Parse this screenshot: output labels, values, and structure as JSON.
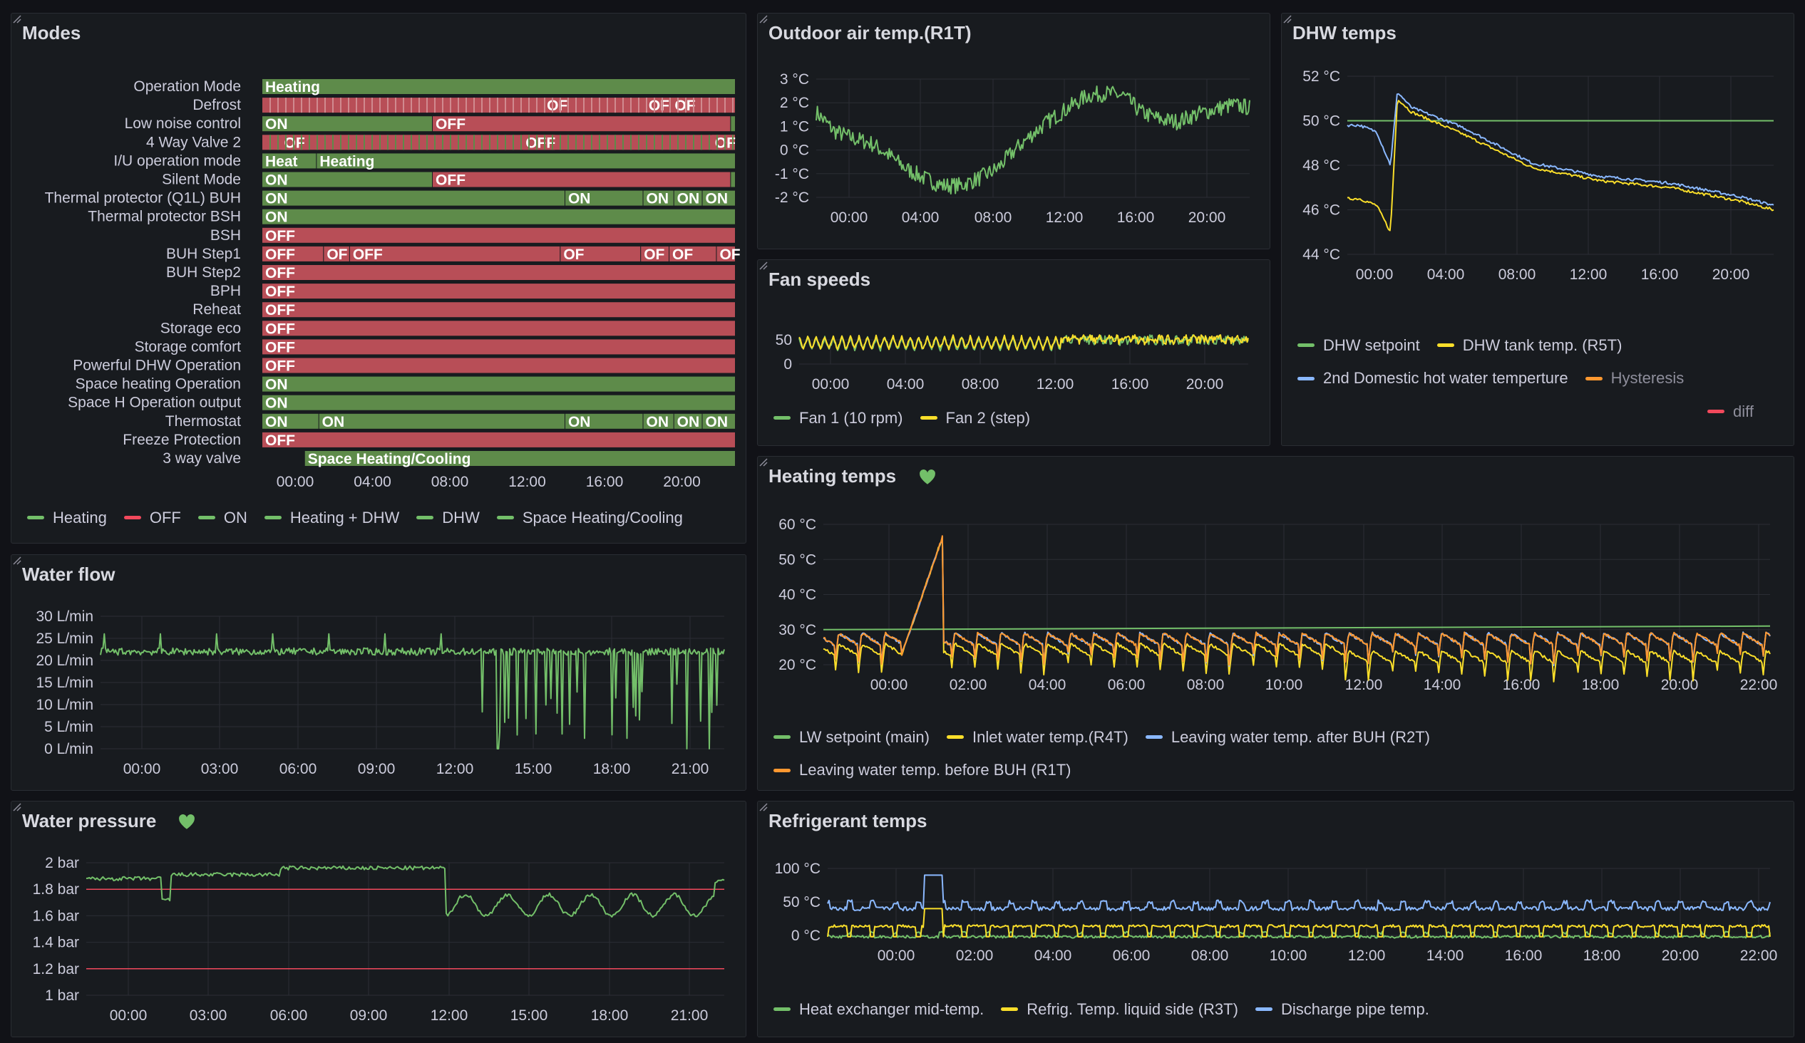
{
  "colors": {
    "green": "#73bf69",
    "red": "#f2495c",
    "yellow": "#fade2a",
    "blue": "#8ab8ff",
    "orange": "#ff9830",
    "grid": "#2b2e34",
    "axis": "#ccccdc",
    "bar_green": "#5e8b4a",
    "bar_red": "#b84e57"
  },
  "panels": {
    "modes": {
      "title": "Modes"
    },
    "outdoor": {
      "title": "Outdoor air temp.(R1T)"
    },
    "dhw": {
      "title": "DHW temps"
    },
    "fan": {
      "title": "Fan speeds"
    },
    "heating": {
      "title": "Heating temps"
    },
    "waterflow": {
      "title": "Water flow"
    },
    "pressure": {
      "title": "Water pressure"
    },
    "refrig": {
      "title": "Refrigerant temps"
    }
  },
  "modes": {
    "rows": [
      {
        "label": "Operation Mode",
        "segs": [
          [
            0,
            1,
            "g",
            "Heating"
          ]
        ]
      },
      {
        "label": "Defrost",
        "segs": [
          [
            0,
            1,
            "r",
            ""
          ],
          [
            0.595,
            0.65,
            "r",
            "OF"
          ],
          [
            0.81,
            0.865,
            "r",
            "OF"
          ],
          [
            0.865,
            1,
            "r",
            "OF"
          ]
        ]
      },
      {
        "label": "Low noise control",
        "segs": [
          [
            0,
            0.36,
            "g",
            "ON"
          ],
          [
            0.36,
            0.99,
            "r",
            "OFF"
          ],
          [
            0.99,
            1,
            "g",
            ""
          ]
        ]
      },
      {
        "label": "4 Way Valve 2",
        "segs": [
          [
            0,
            1,
            "r",
            ""
          ],
          [
            0.04,
            0.1,
            "r",
            "OF"
          ],
          [
            0.55,
            0.62,
            "r",
            "OFF"
          ],
          [
            0.95,
            1,
            "r",
            "OF"
          ]
        ]
      },
      {
        "label": "I/U operation mode",
        "segs": [
          [
            0,
            0.115,
            "g",
            "Heat"
          ],
          [
            0.115,
            1,
            "g",
            "Heating"
          ]
        ]
      },
      {
        "label": "Silent Mode",
        "segs": [
          [
            0,
            0.36,
            "g",
            "ON"
          ],
          [
            0.36,
            0.99,
            "r",
            "OFF"
          ],
          [
            0.99,
            1,
            "g",
            ""
          ]
        ]
      },
      {
        "label": "Thermal protector (Q1L) BUH",
        "segs": [
          [
            0,
            0.64,
            "g",
            "ON"
          ],
          [
            0.64,
            0.805,
            "g",
            "ON"
          ],
          [
            0.805,
            0.87,
            "g",
            "ON"
          ],
          [
            0.87,
            0.93,
            "g",
            "ON"
          ],
          [
            0.93,
            1,
            "g",
            "ON"
          ]
        ]
      },
      {
        "label": "Thermal protector BSH",
        "segs": [
          [
            0,
            1,
            "g",
            "ON"
          ]
        ]
      },
      {
        "label": "BSH",
        "segs": [
          [
            0,
            1,
            "r",
            "OFF"
          ]
        ]
      },
      {
        "label": "BUH Step1",
        "segs": [
          [
            0,
            0.13,
            "r",
            "OFF"
          ],
          [
            0.13,
            0.185,
            "r",
            "OF"
          ],
          [
            0.185,
            0.63,
            "r",
            "OFF"
          ],
          [
            0.63,
            0.8,
            "r",
            "OF"
          ],
          [
            0.8,
            0.86,
            "r",
            "OF"
          ],
          [
            0.86,
            0.96,
            "r",
            "OF"
          ],
          [
            0.96,
            1,
            "r",
            "OF"
          ]
        ]
      },
      {
        "label": "BUH Step2",
        "segs": [
          [
            0,
            1,
            "r",
            "OFF"
          ]
        ]
      },
      {
        "label": "BPH",
        "segs": [
          [
            0,
            1,
            "r",
            "OFF"
          ]
        ]
      },
      {
        "label": "Reheat",
        "segs": [
          [
            0,
            1,
            "r",
            "OFF"
          ]
        ]
      },
      {
        "label": "Storage eco",
        "segs": [
          [
            0,
            1,
            "r",
            "OFF"
          ]
        ]
      },
      {
        "label": "Storage comfort",
        "segs": [
          [
            0,
            1,
            "r",
            "OFF"
          ]
        ]
      },
      {
        "label": "Powerful DHW Operation",
        "segs": [
          [
            0,
            1,
            "r",
            "OFF"
          ]
        ]
      },
      {
        "label": "Space heating Operation",
        "segs": [
          [
            0,
            1,
            "g",
            "ON"
          ]
        ]
      },
      {
        "label": "Space H Operation output",
        "segs": [
          [
            0,
            1,
            "g",
            "ON"
          ]
        ]
      },
      {
        "label": "Thermostat",
        "segs": [
          [
            0,
            0.12,
            "g",
            "ON"
          ],
          [
            0.12,
            0.64,
            "g",
            "ON"
          ],
          [
            0.64,
            0.805,
            "g",
            "ON"
          ],
          [
            0.805,
            0.87,
            "g",
            "ON"
          ],
          [
            0.87,
            0.93,
            "g",
            "ON"
          ],
          [
            0.93,
            1,
            "g",
            "ON"
          ]
        ]
      },
      {
        "label": "Freeze Protection",
        "segs": [
          [
            0,
            1,
            "r",
            "OFF"
          ]
        ]
      },
      {
        "label": "3 way valve",
        "segs": [
          [
            0.09,
            1,
            "g",
            "Space Heating/Cooling"
          ]
        ]
      }
    ],
    "xticks": [
      "00:00",
      "04:00",
      "08:00",
      "12:00",
      "16:00",
      "20:00"
    ],
    "legend": [
      {
        "label": "Heating",
        "color": "#73bf69"
      },
      {
        "label": "OFF",
        "color": "#f2495c"
      },
      {
        "label": "ON",
        "color": "#73bf69"
      },
      {
        "label": "Heating + DHW",
        "color": "#73bf69"
      },
      {
        "label": "DHW",
        "color": "#73bf69"
      },
      {
        "label": "Space Heating/Cooling",
        "color": "#73bf69"
      }
    ]
  },
  "chart_data": [
    {
      "type": "line",
      "title": "Outdoor air temp.(R1T)",
      "ylim": [
        -2.5,
        3.2
      ],
      "yticks": [
        "3 °C",
        "2 °C",
        "1 °C",
        "0 °C",
        "-1 °C",
        "-2 °C"
      ],
      "xticks": [
        "00:00",
        "04:00",
        "08:00",
        "12:00",
        "16:00",
        "20:00"
      ],
      "series": [
        {
          "name": "",
          "color": "#73bf69",
          "x": [
            0,
            1,
            2,
            3,
            4,
            5,
            6,
            7,
            8,
            9,
            10,
            11,
            12,
            13,
            14,
            15,
            16,
            17,
            18,
            19,
            20,
            21,
            22,
            23,
            24
          ],
          "y": [
            1.6,
            0.8,
            0.5,
            0.3,
            -0.2,
            -0.8,
            -1.2,
            -1.5,
            -1.5,
            -1.2,
            -0.8,
            0,
            0.7,
            1.3,
            1.8,
            2.3,
            2.4,
            2.3,
            1.6,
            1.3,
            1.2,
            1.5,
            1.7,
            1.9,
            1.8
          ]
        }
      ]
    },
    {
      "type": "line",
      "title": "DHW temps",
      "ylim": [
        43.5,
        52.5
      ],
      "yticks": [
        "52 °C",
        "50 °C",
        "48 °C",
        "46 °C",
        "44 °C"
      ],
      "xticks": [
        "00:00",
        "04:00",
        "08:00",
        "12:00",
        "16:00",
        "20:00"
      ],
      "series": [
        {
          "name": "DHW setpoint",
          "color": "#73bf69",
          "x": [
            0,
            24
          ],
          "y": [
            50,
            50
          ]
        },
        {
          "name": "DHW tank temp. (R5T)",
          "color": "#fade2a",
          "x": [
            0,
            1,
            1.8,
            2.2,
            3,
            6,
            10,
            14,
            18,
            22,
            24
          ],
          "y": [
            46.5,
            46.2,
            45,
            51,
            50.4,
            49.4,
            47.9,
            47.3,
            47,
            46.4,
            46
          ]
        },
        {
          "name": "2nd Domestic hot water temperture",
          "color": "#8ab8ff",
          "x": [
            0,
            1,
            1.8,
            2.2,
            3,
            6,
            10,
            14,
            18,
            22,
            24
          ],
          "y": [
            49.8,
            49.5,
            48,
            51.3,
            50.6,
            49.7,
            48.1,
            47.5,
            47.2,
            46.6,
            46.2
          ]
        },
        {
          "name": "Hysteresis",
          "color": "#ff9830",
          "x": [],
          "y": []
        },
        {
          "name": "diff",
          "color": "#f2495c",
          "x": [],
          "y": []
        }
      ]
    },
    {
      "type": "line",
      "title": "Fan speeds",
      "ylim": [
        0,
        70
      ],
      "yticks": [
        "50",
        "0"
      ],
      "xticks": [
        "00:00",
        "04:00",
        "08:00",
        "12:00",
        "16:00",
        "20:00"
      ],
      "series": [
        {
          "name": "Fan 1 (10 rpm)",
          "color": "#73bf69",
          "x": [],
          "y": []
        },
        {
          "name": "Fan 2 (step)",
          "color": "#fade2a",
          "x": [],
          "y": []
        }
      ]
    },
    {
      "type": "line",
      "title": "Heating temps",
      "ylim": [
        17,
        62
      ],
      "yticks": [
        "60 °C",
        "50 °C",
        "40 °C",
        "30 °C",
        "20 °C"
      ],
      "xticks": [
        "00:00",
        "02:00",
        "04:00",
        "06:00",
        "08:00",
        "10:00",
        "12:00",
        "14:00",
        "16:00",
        "18:00",
        "20:00",
        "22:00"
      ],
      "series": [
        {
          "name": "LW setpoint (main)",
          "color": "#73bf69",
          "x": [
            0,
            24
          ],
          "y": [
            30,
            30
          ]
        },
        {
          "name": "Inlet water temp.(R4T)",
          "color": "#fade2a",
          "x": [],
          "y": []
        },
        {
          "name": "Leaving water temp. after BUH (R2T)",
          "color": "#8ab8ff",
          "x": [],
          "y": []
        },
        {
          "name": "Leaving water temp. before BUH (R1T)",
          "color": "#ff9830",
          "x": [],
          "y": []
        }
      ]
    },
    {
      "type": "line",
      "title": "Water flow",
      "ylim": [
        0,
        31
      ],
      "yticks": [
        "30 L/min",
        "25 L/min",
        "20 L/min",
        "15 L/min",
        "10 L/min",
        "5 L/min",
        "0 L/min"
      ],
      "xticks": [
        "00:00",
        "03:00",
        "06:00",
        "09:00",
        "12:00",
        "15:00",
        "18:00",
        "21:00"
      ],
      "series": [
        {
          "name": "",
          "color": "#73bf69",
          "x": [],
          "y": []
        }
      ]
    },
    {
      "type": "line",
      "title": "Water pressure",
      "ylim": [
        0.95,
        2.05
      ],
      "yticks": [
        "2 bar",
        "1.8 bar",
        "1.6 bar",
        "1.4 bar",
        "1.2 bar",
        "1 bar"
      ],
      "xticks": [
        "00:00",
        "03:00",
        "06:00",
        "09:00",
        "12:00",
        "15:00",
        "18:00",
        "21:00"
      ],
      "thresholds": [
        1.8,
        1.2
      ],
      "series": [
        {
          "name": "",
          "color": "#73bf69",
          "x": [],
          "y": []
        }
      ]
    },
    {
      "type": "line",
      "title": "Refrigerant temps",
      "ylim": [
        -10,
        105
      ],
      "yticks": [
        "100 °C",
        "50 °C",
        "0 °C"
      ],
      "xticks": [
        "00:00",
        "02:00",
        "04:00",
        "06:00",
        "08:00",
        "10:00",
        "12:00",
        "14:00",
        "16:00",
        "18:00",
        "20:00",
        "22:00"
      ],
      "series": [
        {
          "name": "Heat exchanger mid-temp.",
          "color": "#73bf69",
          "x": [],
          "y": []
        },
        {
          "name": "Refrig. Temp. liquid side (R3T)",
          "color": "#fade2a",
          "x": [],
          "y": []
        },
        {
          "name": "Discharge pipe temp.",
          "color": "#8ab8ff",
          "x": [],
          "y": []
        }
      ]
    }
  ]
}
